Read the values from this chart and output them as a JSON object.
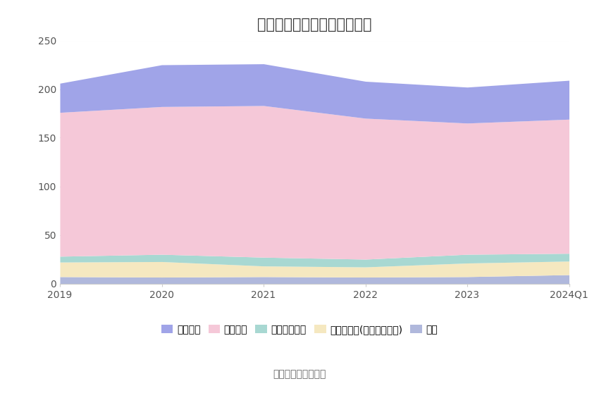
{
  "title": "历年主要负债堆积图（亿元）",
  "source": "数据来源：恒生聚源",
  "x_labels": [
    "2019",
    "2020",
    "2021",
    "2022",
    "2023",
    "2024Q1"
  ],
  "series": {
    "其它": [
      7.0,
      6.5,
      7.0,
      6.5,
      7.0,
      9.0
    ],
    "其他应付款(合利息和股利)": [
      15.0,
      16.0,
      11.0,
      10.5,
      14.0,
      14.0
    ],
    "应付职工薪酬": [
      6.0,
      7.5,
      9.0,
      8.0,
      9.0,
      8.0
    ],
    "合同负债": [
      148.0,
      152.0,
      156.0,
      145.0,
      135.0,
      138.0
    ],
    "应付账款": [
      30.0,
      43.0,
      43.0,
      38.0,
      37.0,
      40.0
    ]
  },
  "colors": {
    "其它": "#b0b8dc",
    "其他应付款(合利息和股利)": "#f5e8c0",
    "应付职工薪酬": "#a8d8d2",
    "合同负债": "#f5c8d8",
    "应付账款": "#a0a4e8"
  },
  "stack_order": [
    "其它",
    "其他应付款(合利息和股利)",
    "应付职工薪酬",
    "合同负债",
    "应付账款"
  ],
  "legend_order": [
    "应付账款",
    "合同负债",
    "应付职工薪酬",
    "其他应付款(合利息和股利)",
    "其它"
  ],
  "ylim": [
    0,
    250
  ],
  "yticks": [
    0,
    50,
    100,
    150,
    200,
    250
  ],
  "background_color": "#ffffff",
  "grid_color": "#e0e4e8",
  "title_fontsize": 15,
  "tick_fontsize": 10,
  "legend_fontsize": 10,
  "source_fontsize": 10
}
